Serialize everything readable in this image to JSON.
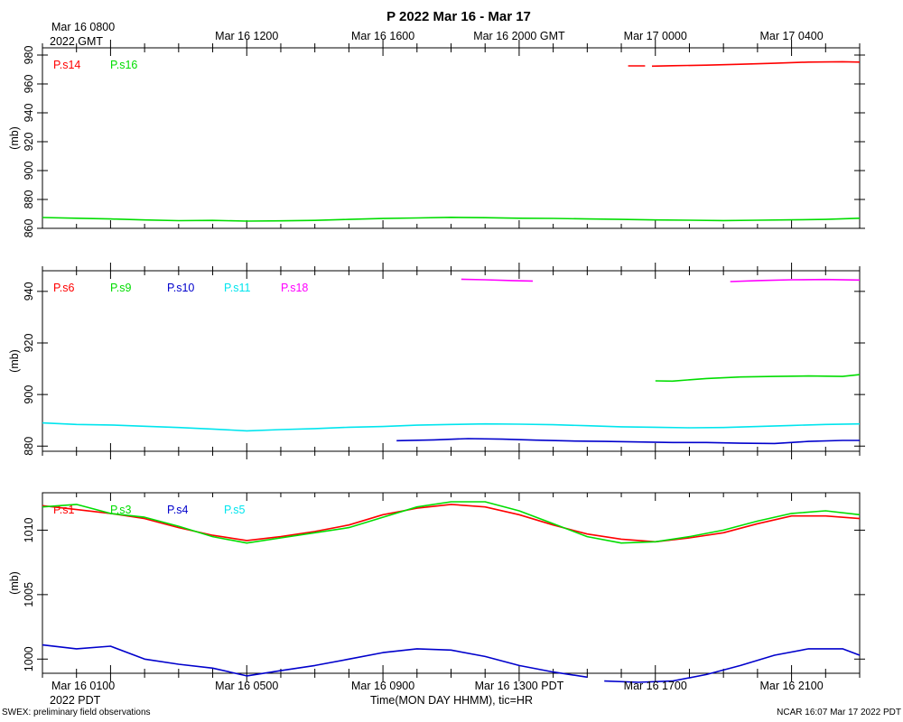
{
  "header": {
    "title": "P 2022 Mar 16 - Mar 17",
    "top_time_labels": [
      "Mar 16 0800",
      "Mar 16 1200",
      "Mar 16 1600",
      "Mar 16 2000 GMT",
      "Mar 17 0000",
      "Mar 17 0400"
    ],
    "top_year_label": "2022 GMT",
    "bottom_time_labels": [
      "Mar 16 0100",
      "Mar 16 0500",
      "Mar 16 0900",
      "Mar 16 1300 PDT",
      "Mar 16 1700",
      "Mar 16 2100"
    ],
    "bottom_year_label": "2022 PDT",
    "xlabel": "Time(MON DAY HHMM), tic=HR",
    "footer_left": "SWEX: preliminary field observations",
    "footer_right": "NCAR 16:07 Mar 17 2022 PDT"
  },
  "chart_data": [
    {
      "type": "line",
      "ylabel": "(mb)",
      "ylim": [
        860,
        985
      ],
      "yticks": [
        860,
        880,
        900,
        920,
        940,
        960,
        980
      ],
      "x_hours_pdt_range": [
        -1,
        23
      ],
      "series": [
        {
          "name": "P.s14",
          "color": "#ff0000",
          "segments": [
            [
              [
                16.2,
                972.5
              ],
              [
                16.7,
                972.5
              ]
            ],
            [
              [
                16.9,
                972.3
              ],
              [
                17.5,
                972.6
              ],
              [
                18.5,
                973.0
              ],
              [
                19.5,
                973.6
              ],
              [
                20.5,
                974.3
              ],
              [
                21.5,
                975.1
              ],
              [
                22.5,
                975.4
              ],
              [
                23.0,
                975.1
              ]
            ]
          ]
        },
        {
          "name": "P.s16",
          "color": "#00dd00",
          "segments": [
            [
              [
                -1,
                867.5
              ],
              [
                0,
                867.0
              ],
              [
                1,
                866.5
              ],
              [
                2,
                865.8
              ],
              [
                3,
                865.3
              ],
              [
                4,
                865.5
              ],
              [
                5,
                865.0
              ],
              [
                6,
                865.2
              ],
              [
                7,
                865.5
              ],
              [
                8,
                866.2
              ],
              [
                9,
                866.8
              ],
              [
                10,
                867.2
              ],
              [
                11,
                867.6
              ],
              [
                12,
                867.4
              ],
              [
                13,
                867.0
              ],
              [
                14,
                866.9
              ],
              [
                15,
                866.5
              ],
              [
                16,
                866.2
              ],
              [
                17,
                865.8
              ],
              [
                18,
                865.6
              ],
              [
                19,
                865.4
              ],
              [
                20,
                865.6
              ],
              [
                21,
                865.9
              ],
              [
                22,
                866.2
              ],
              [
                23,
                867.0
              ]
            ]
          ]
        }
      ]
    },
    {
      "type": "line",
      "ylabel": "(mb)",
      "ylim": [
        878,
        948
      ],
      "yticks": [
        880,
        900,
        920,
        940
      ],
      "x_hours_pdt_range": [
        -1,
        23
      ],
      "series": [
        {
          "name": "P.s6",
          "color": "#ff0000",
          "segments": []
        },
        {
          "name": "P.s9",
          "color": "#00dd00",
          "segments": [
            [
              [
                17.0,
                905.3
              ],
              [
                17.5,
                905.2
              ],
              [
                18.5,
                906.2
              ],
              [
                19.5,
                906.8
              ],
              [
                20.5,
                907.0
              ],
              [
                21.5,
                907.2
              ],
              [
                22.5,
                907.0
              ],
              [
                23.0,
                907.7
              ]
            ]
          ]
        },
        {
          "name": "P.s10",
          "color": "#0000cc",
          "segments": [
            [
              [
                9.4,
                882.1
              ],
              [
                10.5,
                882.4
              ],
              [
                11.5,
                882.9
              ],
              [
                12.5,
                882.7
              ],
              [
                13.5,
                882.3
              ],
              [
                14.5,
                882.0
              ],
              [
                15.5,
                881.8
              ],
              [
                16.5,
                881.6
              ],
              [
                17.5,
                881.4
              ],
              [
                18.5,
                881.4
              ],
              [
                19.5,
                881.1
              ],
              [
                20.5,
                881.0
              ],
              [
                21.5,
                881.8
              ],
              [
                22.5,
                882.2
              ],
              [
                23.0,
                882.2
              ]
            ]
          ]
        },
        {
          "name": "P.s11",
          "color": "#00e5ee",
          "segments": [
            [
              [
                -1,
                889.0
              ],
              [
                0,
                888.4
              ],
              [
                1,
                888.2
              ],
              [
                2,
                887.7
              ],
              [
                3,
                887.2
              ],
              [
                4,
                886.6
              ],
              [
                5,
                885.9
              ],
              [
                6,
                886.4
              ],
              [
                7,
                886.8
              ],
              [
                8,
                887.3
              ],
              [
                9,
                887.6
              ],
              [
                10,
                888.1
              ],
              [
                11,
                888.4
              ],
              [
                12,
                888.6
              ],
              [
                13,
                888.5
              ],
              [
                14,
                888.3
              ],
              [
                15,
                887.9
              ],
              [
                16,
                887.5
              ],
              [
                17,
                887.3
              ],
              [
                18,
                887.1
              ],
              [
                19,
                887.2
              ],
              [
                20,
                887.6
              ],
              [
                21,
                888.0
              ],
              [
                22,
                888.4
              ],
              [
                23,
                888.6
              ]
            ]
          ]
        },
        {
          "name": "P.s18",
          "color": "#ff00ff",
          "segments": [
            [
              [
                11.3,
                944.7
              ],
              [
                12.0,
                944.5
              ],
              [
                12.8,
                944.2
              ],
              [
                13.4,
                944.0
              ]
            ],
            [
              [
                19.2,
                943.8
              ],
              [
                20.0,
                944.2
              ],
              [
                21.0,
                944.5
              ],
              [
                22.0,
                944.6
              ],
              [
                23.0,
                944.4
              ]
            ]
          ]
        }
      ]
    },
    {
      "type": "line",
      "ylabel": "(mb)",
      "ylim": [
        998.9,
        1012.9
      ],
      "yticks": [
        1000,
        1005,
        1010
      ],
      "x_hours_pdt_range": [
        -1,
        23
      ],
      "series": [
        {
          "name": "P.s1",
          "color": "#ff0000",
          "segments": [
            [
              [
                -1,
                1011.9
              ],
              [
                0,
                1011.6
              ],
              [
                1,
                1011.3
              ],
              [
                2,
                1010.9
              ],
              [
                3,
                1010.2
              ],
              [
                4,
                1009.6
              ],
              [
                5,
                1009.2
              ],
              [
                6,
                1009.5
              ],
              [
                7,
                1009.9
              ],
              [
                8,
                1010.4
              ],
              [
                9,
                1011.2
              ],
              [
                10,
                1011.7
              ],
              [
                11,
                1012.0
              ],
              [
                12,
                1011.8
              ],
              [
                13,
                1011.2
              ],
              [
                14,
                1010.4
              ],
              [
                15,
                1009.7
              ],
              [
                16,
                1009.3
              ],
              [
                17,
                1009.1
              ],
              [
                18,
                1009.4
              ],
              [
                19,
                1009.8
              ],
              [
                20,
                1010.5
              ],
              [
                21,
                1011.1
              ],
              [
                22,
                1011.1
              ],
              [
                23,
                1010.9
              ]
            ]
          ]
        },
        {
          "name": "P.s3",
          "color": "#00dd00",
          "segments": [
            [
              [
                -1,
                1011.8
              ],
              [
                0,
                1012.0
              ],
              [
                1,
                1011.3
              ],
              [
                2,
                1011.0
              ],
              [
                3,
                1010.3
              ],
              [
                4,
                1009.5
              ],
              [
                5,
                1009.0
              ],
              [
                6,
                1009.4
              ],
              [
                7,
                1009.8
              ],
              [
                8,
                1010.2
              ],
              [
                9,
                1011.0
              ],
              [
                10,
                1011.8
              ],
              [
                11,
                1012.2
              ],
              [
                12,
                1012.2
              ],
              [
                13,
                1011.5
              ],
              [
                14,
                1010.5
              ],
              [
                15,
                1009.5
              ],
              [
                16,
                1009.0
              ],
              [
                17,
                1009.1
              ],
              [
                18,
                1009.5
              ],
              [
                19,
                1010.0
              ],
              [
                20,
                1010.7
              ],
              [
                21,
                1011.3
              ],
              [
                22,
                1011.5
              ],
              [
                23,
                1011.2
              ]
            ]
          ]
        },
        {
          "name": "P.s4",
          "color": "#0000cc",
          "segments": [
            [
              [
                -1,
                1001.1
              ],
              [
                0,
                1000.8
              ],
              [
                1,
                1001.0
              ],
              [
                2,
                1000.0
              ],
              [
                3,
                999.6
              ],
              [
                4,
                999.3
              ],
              [
                5,
                998.7
              ],
              [
                6,
                999.1
              ],
              [
                7,
                999.5
              ],
              [
                8,
                1000.0
              ],
              [
                9,
                1000.5
              ],
              [
                10,
                1000.8
              ],
              [
                11,
                1000.7
              ],
              [
                12,
                1000.2
              ],
              [
                13,
                999.5
              ],
              [
                14,
                999.0
              ],
              [
                15,
                998.6
              ]
            ],
            [
              [
                15.5,
                998.3
              ],
              [
                16.5,
                998.2
              ],
              [
                17.5,
                998.3
              ],
              [
                18.5,
                998.8
              ],
              [
                19.5,
                999.5
              ],
              [
                20.5,
                1000.3
              ],
              [
                21.5,
                1000.8
              ],
              [
                22.5,
                1000.8
              ],
              [
                23.0,
                1000.3
              ]
            ]
          ]
        },
        {
          "name": "P.s5",
          "color": "#00e5ee",
          "segments": []
        }
      ]
    }
  ]
}
